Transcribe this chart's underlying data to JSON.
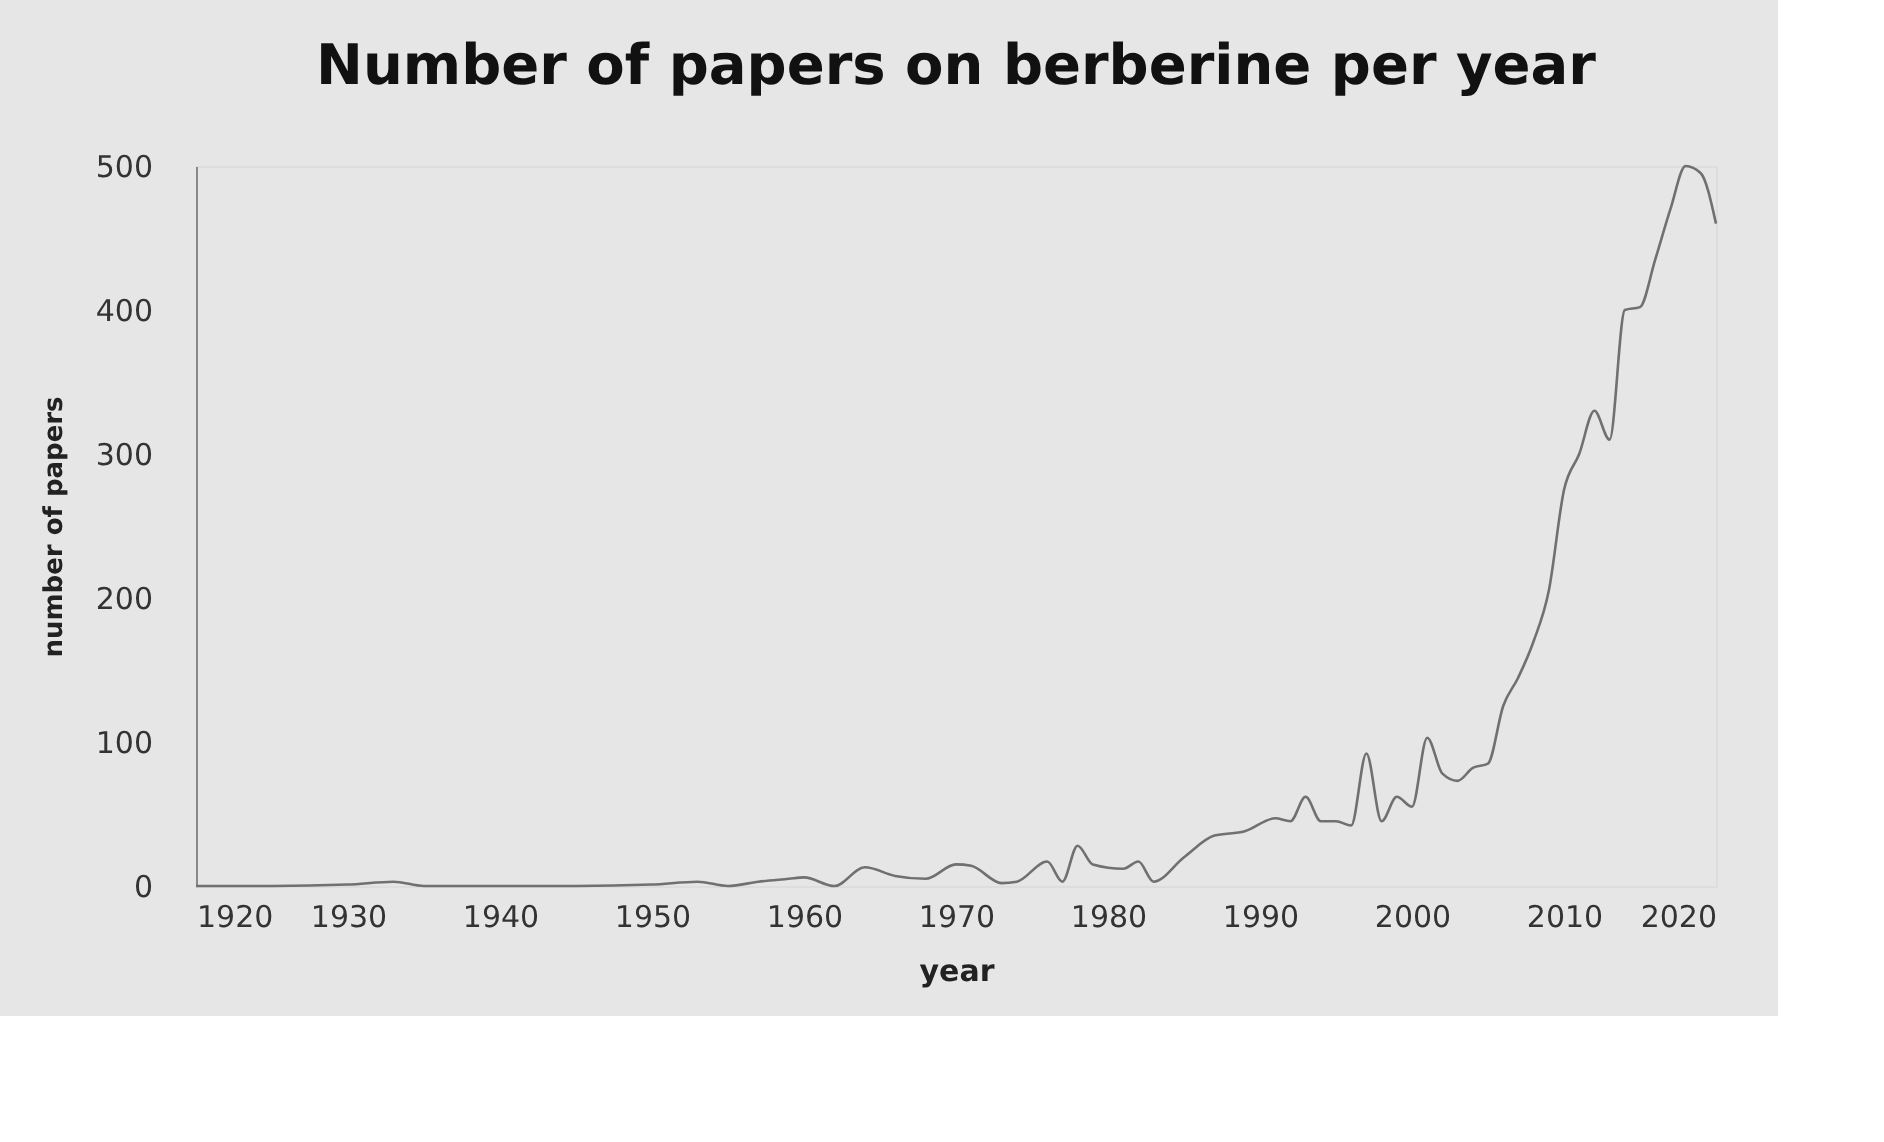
{
  "chart_data": {
    "type": "line",
    "title": "Number of papers on berberine per year",
    "xlabel": "year",
    "ylabel": "number of papers",
    "x": [
      1920,
      1925,
      1930,
      1933,
      1935,
      1940,
      1945,
      1950,
      1953,
      1955,
      1957,
      1959,
      1960,
      1962,
      1964,
      1966,
      1968,
      1970,
      1971,
      1973,
      1974,
      1976,
      1977,
      1978,
      1979,
      1981,
      1982,
      1983,
      1985,
      1987,
      1989,
      1991,
      1992,
      1993,
      1994,
      1995,
      1996,
      1997,
      1998,
      1999,
      2000,
      2001,
      2002,
      2003,
      2004,
      2005,
      2006,
      2007,
      2008,
      2009,
      2010,
      2011,
      2012,
      2013,
      2014,
      2015,
      2016,
      2017,
      2018,
      2019,
      2020
    ],
    "series": [
      {
        "color": "#707070",
        "values": [
          0,
          0,
          1,
          3,
          0,
          0,
          0,
          1,
          3,
          0,
          3,
          5,
          6,
          0,
          13,
          7,
          5,
          15,
          14,
          2,
          3,
          17,
          3,
          28,
          15,
          12,
          17,
          3,
          20,
          35,
          38,
          47,
          45,
          62,
          45,
          45,
          42,
          92,
          45,
          62,
          55,
          103,
          78,
          73,
          82,
          85,
          125,
          145,
          170,
          205,
          275,
          300,
          330,
          310,
          400,
          402,
          435,
          470,
          500,
          495,
          460
        ]
      }
    ],
    "xlim": [
      1920,
      2020
    ],
    "ylim": [
      0,
      500
    ],
    "xticks": [
      1920,
      1930,
      1940,
      1950,
      1960,
      1970,
      1980,
      1990,
      2000,
      2010,
      2020
    ],
    "yticks": [
      0,
      100,
      200,
      300,
      400,
      500
    ],
    "grid": false,
    "marker": "none",
    "line_style": "solid"
  }
}
